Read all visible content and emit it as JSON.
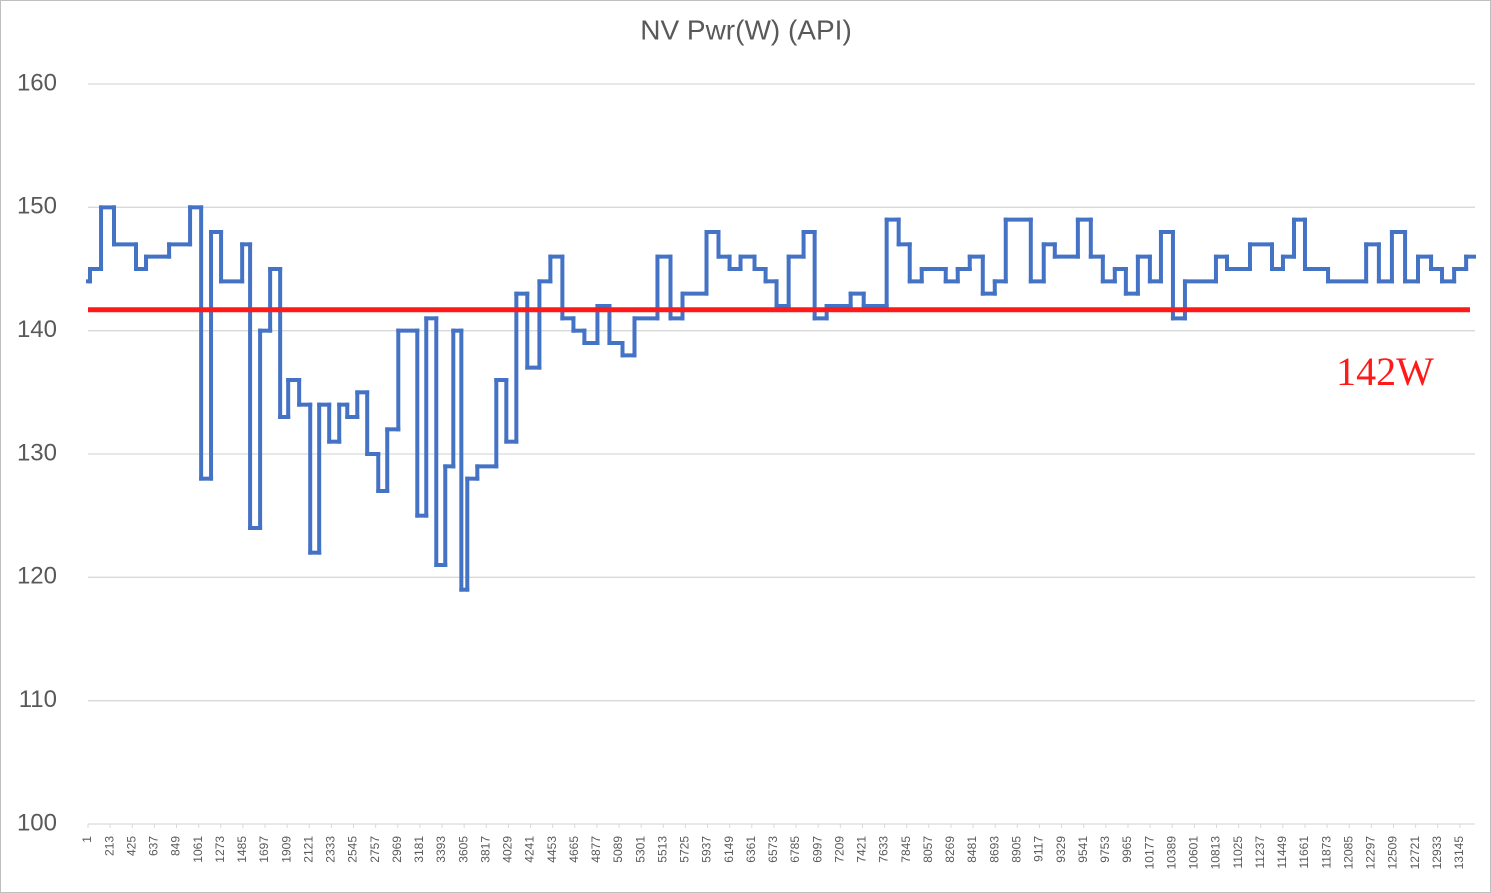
{
  "chart_data": {
    "type": "line",
    "title": "NV Pwr(W) (API)",
    "step": "after",
    "color": "#4472c4",
    "x": [
      1,
      20,
      126,
      250,
      461,
      557,
      778,
      979,
      1085,
      1180,
      1276,
      1478,
      1554,
      1650,
      1746,
      1842,
      1919,
      2024,
      2130,
      2216,
      2312,
      2408,
      2485,
      2581,
      2676,
      2782,
      2868,
      2974,
      3156,
      3242,
      3338,
      3424,
      3501,
      3578,
      3635,
      3731,
      3913,
      4009,
      4105,
      4210,
      4326,
      4431,
      4546,
      4652,
      4757,
      4882,
      4997,
      5122,
      5237,
      5457,
      5582,
      5697,
      5927,
      6042,
      6148,
      6253,
      6387,
      6493,
      6598,
      6714,
      6857,
      6963,
      7078,
      7308,
      7433,
      7653,
      7768,
      7874,
      7989,
      8219,
      8334,
      8449,
      8574,
      8689,
      8794,
      9034,
      9158,
      9264,
      9485,
      9609,
      9724,
      9839,
      9945,
      10060,
      10175,
      10281,
      10396,
      10511,
      10808,
      10914,
      11134,
      11345,
      11450,
      11556,
      11661,
      11882,
      12247,
      12369,
      12494,
      12620,
      12744,
      12869,
      12974,
      13090,
      13205
    ],
    "values": [
      144,
      145,
      150,
      147,
      145,
      146,
      147,
      150,
      128,
      148,
      144,
      147,
      124,
      140,
      145,
      133,
      136,
      134,
      122,
      134,
      131,
      134,
      133,
      135,
      130,
      127,
      132,
      140,
      125,
      141,
      121,
      129,
      140,
      119,
      128,
      129,
      136,
      131,
      143,
      137,
      144,
      146,
      141,
      140,
      139,
      142,
      139,
      138,
      141,
      146,
      141,
      143,
      148,
      146,
      145,
      146,
      145,
      144,
      142,
      146,
      148,
      141,
      142,
      143,
      142,
      149,
      147,
      144,
      145,
      144,
      145,
      146,
      143,
      144,
      149,
      144,
      147,
      146,
      149,
      146,
      144,
      145,
      143,
      146,
      144,
      148,
      141,
      144,
      146,
      145,
      147,
      145,
      146,
      149,
      145,
      144,
      147,
      144,
      148,
      144,
      146,
      145,
      144,
      145,
      146
    ],
    "reference_line": {
      "value": 141.7,
      "label": "142W",
      "color": "#ff1a1a"
    },
    "xlim": [
      1,
      13290
    ],
    "xticks": [
      1,
      213,
      425,
      637,
      849,
      1061,
      1273,
      1485,
      1697,
      1909,
      2121,
      2333,
      2545,
      2757,
      2969,
      3181,
      3393,
      3605,
      3817,
      4029,
      4241,
      4453,
      4665,
      4877,
      5089,
      5301,
      5513,
      5725,
      5937,
      6149,
      6361,
      6573,
      6785,
      6997,
      7209,
      7421,
      7633,
      7845,
      8057,
      8269,
      8481,
      8693,
      8905,
      9117,
      9329,
      9541,
      9753,
      9965,
      10177,
      10389,
      10601,
      10813,
      11025,
      11237,
      11449,
      11661,
      11873,
      12085,
      12297,
      12509,
      12721,
      12933,
      13145
    ],
    "ylim": [
      100,
      160
    ],
    "yticks": [
      100,
      110,
      120,
      130,
      140,
      150,
      160
    ],
    "grid": true
  }
}
